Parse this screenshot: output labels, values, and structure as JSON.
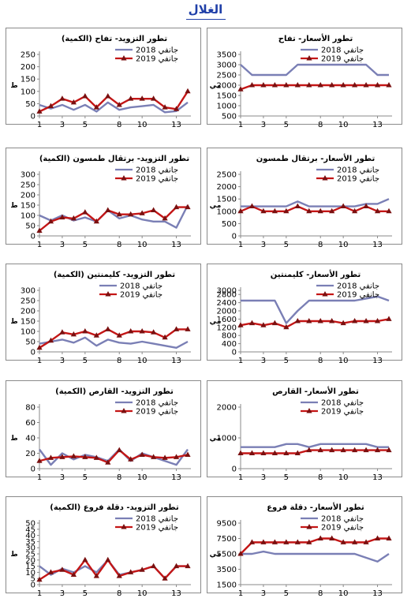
{
  "page": {
    "title": "الغلال"
  },
  "colors": {
    "series_2018": "#7a7fb5",
    "series_2019": "#c41616",
    "marker_2019": "#7a1010",
    "axis": "#8a8a8a"
  },
  "chart_data": [
    {
      "id": "supply-apple",
      "type": "line",
      "title": "تطور التزويد- تفاح (الكمية)",
      "ylabel": "ط",
      "x": [
        1,
        2,
        3,
        4,
        5,
        6,
        7,
        8,
        9,
        10,
        11,
        12,
        13,
        14
      ],
      "xticks": [
        1,
        3,
        5,
        8,
        10,
        13
      ],
      "ylim": [
        0,
        250
      ],
      "yticks": [
        0,
        50,
        100,
        150,
        200,
        250
      ],
      "legend_position": "top-right",
      "series": [
        {
          "name": "جانفي 2018",
          "values": [
            45,
            30,
            45,
            25,
            45,
            18,
            55,
            25,
            35,
            40,
            45,
            15,
            20,
            55
          ]
        },
        {
          "name": "جانفي 2019",
          "values": [
            18,
            40,
            70,
            55,
            80,
            35,
            80,
            45,
            70,
            70,
            70,
            35,
            28,
            100
          ]
        }
      ]
    },
    {
      "id": "price-apple",
      "type": "line",
      "title": "تطور الأسعار- تفاح",
      "ylabel": "مي",
      "x": [
        1,
        2,
        3,
        4,
        5,
        6,
        7,
        8,
        9,
        10,
        11,
        12,
        13,
        14
      ],
      "xticks": [
        1,
        3,
        5,
        8,
        10,
        13
      ],
      "ylim": [
        500,
        3500
      ],
      "yticks": [
        500,
        1000,
        1500,
        2000,
        2500,
        3000,
        3500
      ],
      "legend_position": "top-center",
      "series": [
        {
          "name": "جانفي 2018",
          "values": [
            3000,
            2500,
            2500,
            2500,
            2500,
            3000,
            3000,
            3000,
            3000,
            3000,
            3000,
            3000,
            2500,
            2500
          ]
        },
        {
          "name": "جانفي 2019",
          "values": [
            1800,
            2000,
            2000,
            2000,
            2000,
            2000,
            2000,
            2000,
            2000,
            2000,
            2000,
            2000,
            2000,
            2000
          ]
        }
      ]
    },
    {
      "id": "supply-orange-maltese",
      "type": "line",
      "title": "تطور التزويد- برتقال طمسون (الكمية)",
      "ylabel": "ط",
      "x": [
        1,
        2,
        3,
        4,
        5,
        6,
        7,
        8,
        9,
        10,
        11,
        12,
        13,
        14
      ],
      "xticks": [
        1,
        3,
        5,
        8,
        10,
        13
      ],
      "ylim": [
        0,
        300
      ],
      "yticks": [
        0,
        50,
        100,
        150,
        200,
        250,
        300
      ],
      "legend_position": "top-right",
      "series": [
        {
          "name": "جانفي 2018",
          "values": [
            100,
            75,
            100,
            75,
            90,
            70,
            125,
            85,
            100,
            80,
            70,
            70,
            40,
            150
          ]
        },
        {
          "name": "جانفي 2019",
          "values": [
            25,
            70,
            90,
            85,
            115,
            70,
            125,
            105,
            105,
            110,
            125,
            85,
            140,
            140
          ]
        }
      ]
    },
    {
      "id": "price-orange-maltese",
      "type": "line",
      "title": "تطور الأسعار- برتقال طمسون",
      "ylabel": "مي",
      "x": [
        1,
        2,
        3,
        4,
        5,
        6,
        7,
        8,
        9,
        10,
        11,
        12,
        13,
        14
      ],
      "xticks": [
        1,
        3,
        5,
        8,
        10,
        13
      ],
      "ylim": [
        0,
        2500
      ],
      "yticks": [
        0,
        500,
        1000,
        1500,
        2000,
        2500
      ],
      "legend_position": "top-right",
      "series": [
        {
          "name": "جانفي 2018",
          "values": [
            1200,
            1200,
            1200,
            1200,
            1200,
            1400,
            1200,
            1200,
            1200,
            1200,
            1200,
            1300,
            1300,
            1500
          ]
        },
        {
          "name": "جانفي 2019",
          "values": [
            1000,
            1200,
            1000,
            1000,
            1000,
            1200,
            1000,
            1000,
            1000,
            1200,
            1000,
            1200,
            1000,
            1000
          ]
        }
      ]
    },
    {
      "id": "supply-clementine",
      "type": "line",
      "title": "تطور التزويد- كليمنتين (الكمية)",
      "ylabel": "ط",
      "x": [
        1,
        2,
        3,
        4,
        5,
        6,
        7,
        8,
        9,
        10,
        11,
        12,
        13,
        14
      ],
      "xticks": [
        1,
        3,
        5,
        8,
        10,
        13
      ],
      "ylim": [
        0,
        300
      ],
      "yticks": [
        0,
        50,
        100,
        150,
        200,
        250,
        300
      ],
      "legend_position": "top-center",
      "series": [
        {
          "name": "جانفي 2018",
          "values": [
            40,
            50,
            60,
            45,
            70,
            30,
            60,
            45,
            40,
            50,
            40,
            30,
            20,
            50
          ]
        },
        {
          "name": "جانفي 2019",
          "values": [
            20,
            55,
            95,
            85,
            100,
            80,
            110,
            80,
            100,
            100,
            95,
            70,
            110,
            110
          ]
        }
      ]
    },
    {
      "id": "price-clementine",
      "type": "line",
      "title": "تطور الأسعار- كليمنتين",
      "ylabel": "مي",
      "x": [
        1,
        2,
        3,
        4,
        5,
        6,
        7,
        8,
        9,
        10,
        11,
        12,
        13,
        14
      ],
      "xticks": [
        1,
        3,
        5,
        8,
        10,
        13
      ],
      "ylim": [
        0,
        3000
      ],
      "yticks": [
        0,
        400,
        800,
        1200,
        1600,
        2000,
        2400,
        2800,
        3000
      ],
      "legend_position": "top-right",
      "series": [
        {
          "name": "جانفي 2018",
          "values": [
            2500,
            2500,
            2500,
            2500,
            1400,
            2000,
            2500,
            2500,
            2500,
            2500,
            2500,
            2600,
            2700,
            2500
          ]
        },
        {
          "name": "جانفي 2019",
          "values": [
            1300,
            1400,
            1300,
            1400,
            1200,
            1500,
            1500,
            1500,
            1500,
            1400,
            1500,
            1500,
            1500,
            1600
          ]
        }
      ]
    },
    {
      "id": "supply-dates",
      "type": "line",
      "title": "تطور التزويد- القارص (الكمية)",
      "ylabel": "ط",
      "x": [
        1,
        2,
        3,
        4,
        5,
        6,
        7,
        8,
        9,
        10,
        11,
        12,
        13,
        14
      ],
      "xticks": [
        1,
        3,
        5,
        8,
        10,
        13
      ],
      "ylim": [
        0,
        80
      ],
      "yticks": [
        0,
        20,
        40,
        60,
        80
      ],
      "legend_position": "top-right",
      "series": [
        {
          "name": "جانفي 2018",
          "values": [
            25,
            5,
            20,
            12,
            18,
            15,
            10,
            25,
            10,
            20,
            15,
            10,
            5,
            25
          ]
        },
        {
          "name": "جانفي 2019",
          "values": [
            10,
            14,
            15,
            16,
            15,
            14,
            8,
            24,
            12,
            18,
            15,
            14,
            15,
            18
          ]
        }
      ]
    },
    {
      "id": "price-dates",
      "type": "line",
      "title": "تطور الأسعار- القارص",
      "ylabel": "مي",
      "x": [
        1,
        2,
        3,
        4,
        5,
        6,
        7,
        8,
        9,
        10,
        11,
        12,
        13,
        14
      ],
      "xticks": [
        1,
        3,
        5,
        8,
        10,
        13
      ],
      "ylim": [
        0,
        2000
      ],
      "yticks": [
        0,
        1000,
        2000
      ],
      "legend_position": "top-center",
      "series": [
        {
          "name": "جانفي 2018",
          "values": [
            700,
            700,
            700,
            700,
            800,
            800,
            700,
            800,
            800,
            800,
            800,
            800,
            700,
            700
          ]
        },
        {
          "name": "جانفي 2019",
          "values": [
            500,
            500,
            500,
            500,
            500,
            500,
            600,
            600,
            600,
            600,
            600,
            600,
            600,
            600
          ]
        }
      ]
    },
    {
      "id": "supply-dates-deglet",
      "type": "line",
      "title": "تطور التزويد- دقلة فروع (الكمية)",
      "ylabel": "ط",
      "x": [
        1,
        2,
        3,
        4,
        5,
        6,
        7,
        8,
        9,
        10,
        11,
        12,
        13,
        14
      ],
      "xticks": [
        1,
        3,
        5,
        8,
        10,
        13
      ],
      "ylim": [
        0,
        50
      ],
      "yticks": [
        0,
        5,
        10,
        15,
        20,
        25,
        30,
        35,
        40,
        45,
        50
      ],
      "legend_position": "top-right",
      "series": [
        {
          "name": "جانفي 2018",
          "values": [
            15,
            8,
            13,
            10,
            15,
            10,
            20,
            8,
            10,
            12,
            15,
            5,
            15,
            15
          ]
        },
        {
          "name": "جانفي 2019",
          "values": [
            4,
            10,
            12,
            8,
            20,
            7,
            20,
            7,
            10,
            12,
            15,
            5,
            15,
            15
          ]
        }
      ]
    },
    {
      "id": "price-dates-deglet",
      "type": "line",
      "title": "تطور الأسعار- دقلة فروع",
      "ylabel": "مي",
      "x": [
        1,
        2,
        3,
        4,
        5,
        6,
        7,
        8,
        9,
        10,
        11,
        12,
        13,
        14
      ],
      "xticks": [
        1,
        3,
        5,
        8,
        10,
        13
      ],
      "ylim": [
        1500,
        9500
      ],
      "yticks": [
        1500,
        3500,
        5500,
        7500,
        9500
      ],
      "legend_position": "top-center",
      "series": [
        {
          "name": "جانفي 2018",
          "values": [
            5500,
            5500,
            5800,
            5500,
            5500,
            5500,
            5500,
            5500,
            5500,
            5500,
            5500,
            5000,
            4500,
            5500
          ]
        },
        {
          "name": "جانفي 2019",
          "values": [
            5500,
            7000,
            7000,
            7000,
            7000,
            7000,
            7000,
            7500,
            7500,
            7000,
            7000,
            7000,
            7500,
            7500
          ]
        }
      ]
    }
  ]
}
